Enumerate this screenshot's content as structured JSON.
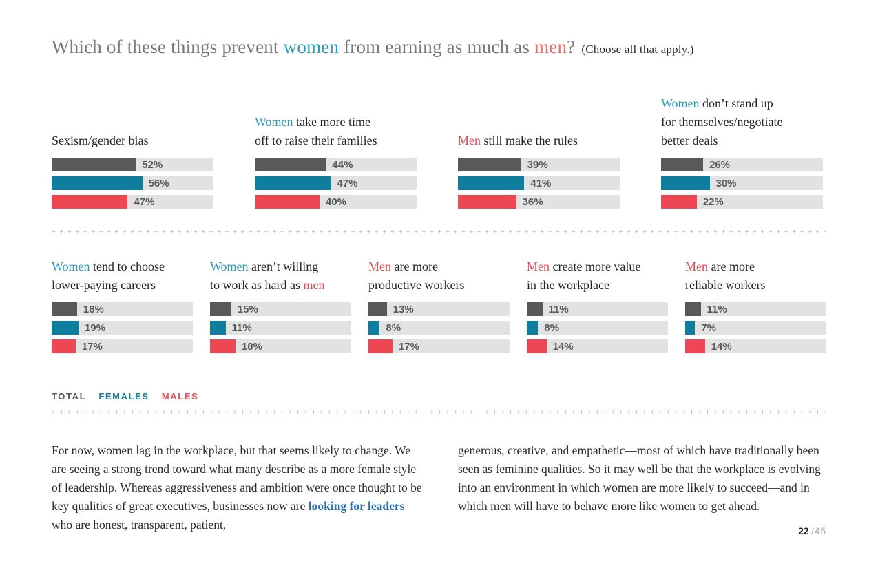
{
  "title": {
    "part1": "Which of these things prevent ",
    "women": "women",
    "part2": " from earning as much as ",
    "men": "men",
    "qmark": "?",
    "note": "(Choose all that apply.)"
  },
  "legend": {
    "total": "TOTAL",
    "females": "FEMALES",
    "males": "MALES"
  },
  "chart_data": {
    "type": "bar",
    "series": [
      "Total",
      "Females",
      "Males"
    ],
    "unit": "%",
    "axis_range": [
      0,
      100
    ],
    "layout": "two rows of horizontal grouped bars; value labels at end of each bar; light gray full-width tracks",
    "rows": [
      {
        "groups": [
          {
            "label_lines": [
              [
                {
                  "t": "Sexism/gender bias"
                }
              ]
            ],
            "values": [
              52,
              56,
              47
            ]
          },
          {
            "label_lines": [
              [
                {
                  "t": "Women",
                  "c": "teal"
                },
                {
                  "t": " take more time"
                }
              ],
              [
                {
                  "t": "off to raise their families"
                }
              ]
            ],
            "values": [
              44,
              47,
              40
            ]
          },
          {
            "label_lines": [
              [
                {
                  "t": "Men",
                  "c": "red"
                },
                {
                  "t": " still make the rules"
                }
              ]
            ],
            "values": [
              39,
              41,
              36
            ]
          },
          {
            "label_lines": [
              [
                {
                  "t": "Women",
                  "c": "teal"
                },
                {
                  "t": " don’t stand up"
                }
              ],
              [
                {
                  "t": "for themselves/negotiate"
                }
              ],
              [
                {
                  "t": "better deals"
                }
              ]
            ],
            "values": [
              26,
              30,
              22
            ]
          }
        ]
      },
      {
        "groups": [
          {
            "label_lines": [
              [
                {
                  "t": "Women",
                  "c": "teal"
                },
                {
                  "t": " tend to choose"
                }
              ],
              [
                {
                  "t": "lower-paying careers"
                }
              ]
            ],
            "values": [
              18,
              19,
              17
            ]
          },
          {
            "label_lines": [
              [
                {
                  "t": "Women",
                  "c": "teal"
                },
                {
                  "t": " aren’t willing"
                }
              ],
              [
                {
                  "t": "to work as hard as "
                },
                {
                  "t": "men",
                  "c": "red"
                }
              ]
            ],
            "values": [
              15,
              11,
              18
            ]
          },
          {
            "label_lines": [
              [
                {
                  "t": "Men",
                  "c": "red"
                },
                {
                  "t": " are more"
                }
              ],
              [
                {
                  "t": "productive workers"
                }
              ]
            ],
            "values": [
              13,
              8,
              17
            ]
          },
          {
            "label_lines": [
              [
                {
                  "t": "Men",
                  "c": "red"
                },
                {
                  "t": " create more value"
                }
              ],
              [
                {
                  "t": "in the workplace"
                }
              ]
            ],
            "values": [
              11,
              8,
              14
            ]
          },
          {
            "label_lines": [
              [
                {
                  "t": "Men",
                  "c": "red"
                },
                {
                  "t": " are more"
                }
              ],
              [
                {
                  "t": "reliable workers"
                }
              ]
            ],
            "values": [
              11,
              7,
              14
            ]
          }
        ]
      }
    ]
  },
  "body": {
    "left_before_link": "For now, women lag in the workplace, but that seems likely to change. We are seeing a strong trend toward what many describe as a more female style of leadership. Whereas aggressiveness and ambition were once thought to be key qualities of great executives, businesses now are ",
    "link": "looking for leaders",
    "left_after_link": " who are honest, transparent, patient,",
    "right": "generous, creative, and empathetic—most of which have traditionally been seen as feminine qualities. So it may well be that the workplace is evolving into an environment in which women are more likely to succeed—and in which men will have to behave more like women to get ahead."
  },
  "footer": {
    "page": "22",
    "total": "/45"
  },
  "colors": {
    "total_bar": "#58595b",
    "females_bar": "#0f7e9e",
    "males_bar": "#ee4753",
    "bar_track": "#e2e2e2",
    "title_gray": "#77787a",
    "accent_teal": "#2b99bb",
    "accent_red": "#ee4753",
    "accent_red_title": "#f2696f",
    "link_blue": "#2a6cb0"
  }
}
